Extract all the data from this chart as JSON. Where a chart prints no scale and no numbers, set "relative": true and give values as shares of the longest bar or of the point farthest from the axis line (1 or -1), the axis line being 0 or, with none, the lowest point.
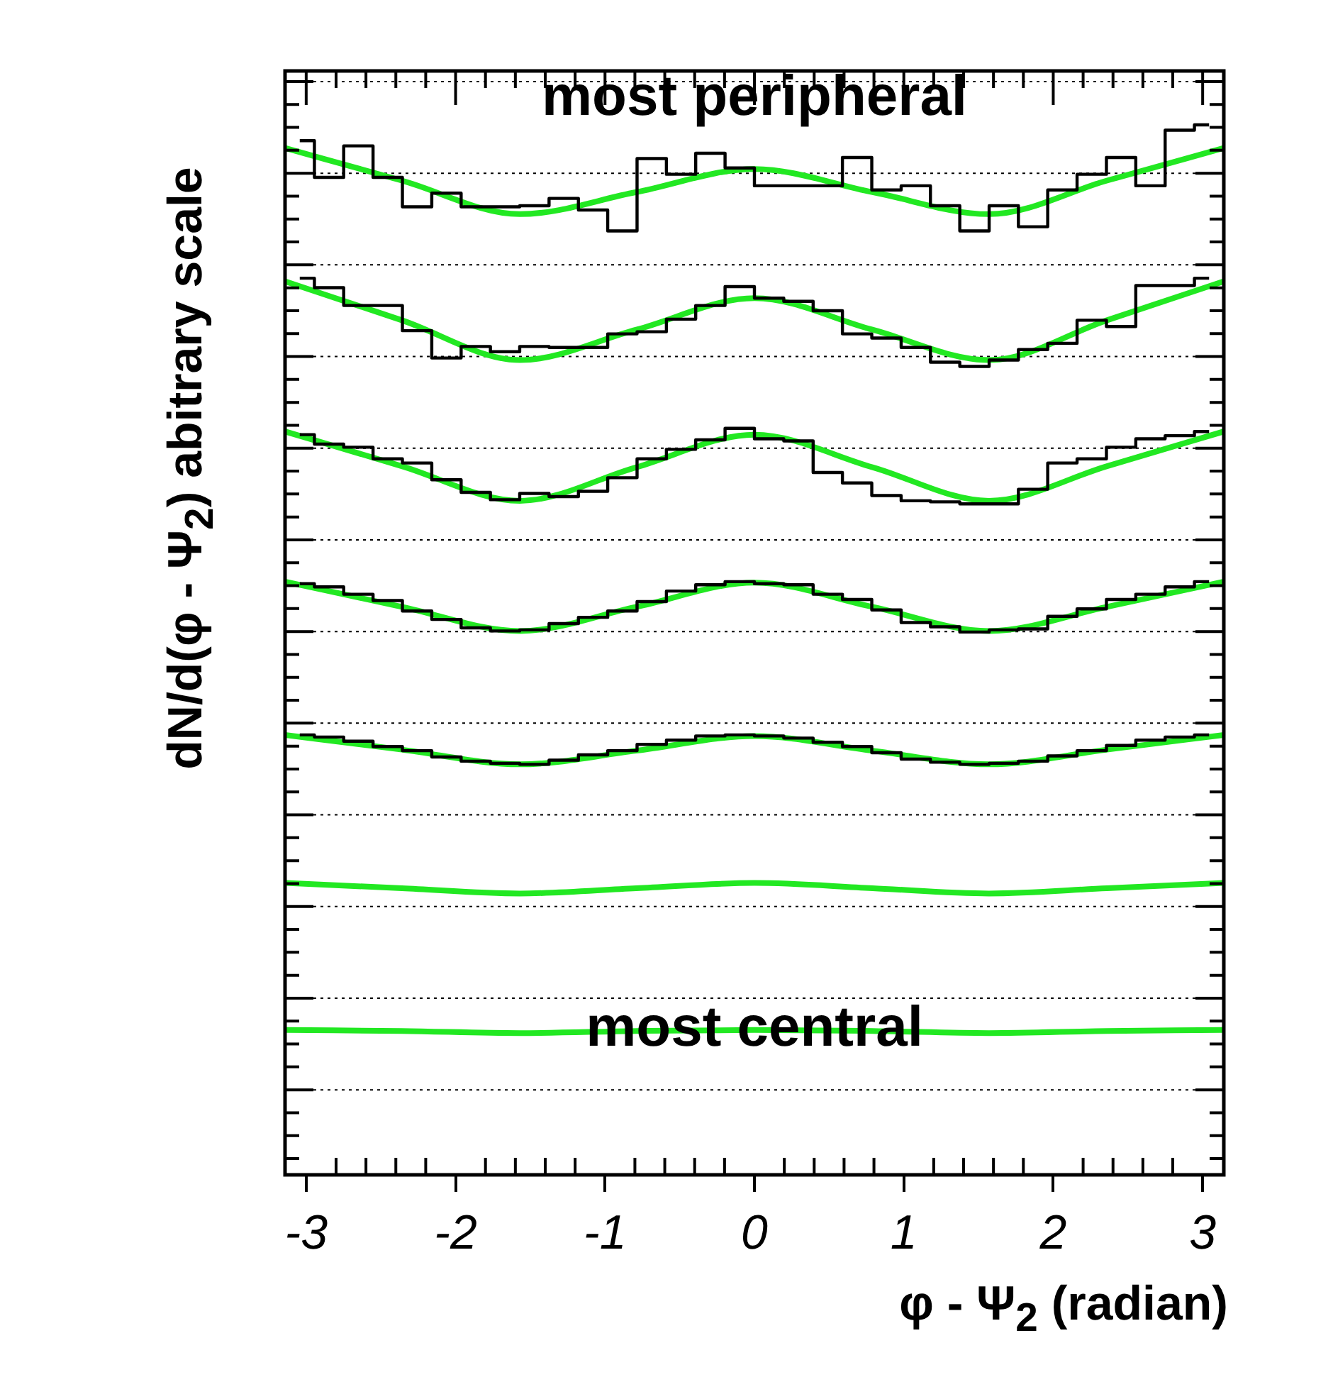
{
  "chart_data": {
    "type": "line",
    "relative": true,
    "xlabel": "φ - Ψ$_{2}$ (radian)",
    "ylabel": "dN/d(φ - Ψ$_{2}$) abitrary scale",
    "annotations": [
      "most peripheral",
      {
        "text": "most central",
        "x": 0,
        "y": 0.138
      }
    ],
    "xlim": [
      -3.1416,
      3.1416
    ],
    "xticks": [
      -3,
      -2,
      -1,
      0,
      1,
      2,
      3
    ],
    "grid": "y",
    "legend": false,
    "marker": "none",
    "line_style": "solid",
    "x": [
      -3.043,
      -2.847,
      -2.651,
      -2.454,
      -2.258,
      -2.061,
      -1.865,
      -1.669,
      -1.473,
      -1.276,
      -1.08,
      -0.884,
      -0.687,
      -0.491,
      -0.295,
      -0.098,
      0.098,
      0.295,
      0.491,
      0.687,
      0.884,
      1.08,
      1.276,
      1.473,
      1.669,
      1.865,
      2.061,
      2.258,
      2.454,
      2.651,
      2.847,
      3.043
    ],
    "series": [
      {
        "type": "step",
        "color": "#000000",
        "values": [
          0.985,
          0.95,
          0.98,
          0.95,
          0.922,
          0.935,
          0.922,
          0.922,
          0.923,
          0.93,
          0.919,
          0.899,
          0.968,
          0.953,
          0.973,
          0.959,
          0.942,
          0.942,
          0.942,
          0.969,
          0.938,
          0.942,
          0.923,
          0.899,
          0.923,
          0.903,
          0.938,
          0.953,
          0.969,
          0.942,
          0.995,
          1
        ]
      },
      {
        "type": "step",
        "color": "#000000",
        "values": [
          0.854,
          0.845,
          0.828,
          0.828,
          0.804,
          0.778,
          0.789,
          0.784,
          0.789,
          0.788,
          0.788,
          0.801,
          0.803,
          0.815,
          0.828,
          0.846,
          0.835,
          0.832,
          0.823,
          0.801,
          0.797,
          0.788,
          0.774,
          0.77,
          0.776,
          0.786,
          0.792,
          0.814,
          0.808,
          0.847,
          0.847,
          0.854
        ]
      },
      {
        "type": "step",
        "color": "#000000",
        "values": [
          0.705,
          0.696,
          0.693,
          0.682,
          0.678,
          0.662,
          0.65,
          0.643,
          0.649,
          0.646,
          0.651,
          0.664,
          0.682,
          0.691,
          0.7,
          0.711,
          0.701,
          0.699,
          0.669,
          0.659,
          0.647,
          0.642,
          0.641,
          0.639,
          0.639,
          0.653,
          0.678,
          0.682,
          0.693,
          0.701,
          0.704,
          0.708
        ]
      },
      {
        "type": "step",
        "color": "#000000",
        "values": [
          0.563,
          0.56,
          0.553,
          0.547,
          0.537,
          0.529,
          0.521,
          0.518,
          0.519,
          0.525,
          0.531,
          0.537,
          0.546,
          0.556,
          0.562,
          0.565,
          0.563,
          0.562,
          0.553,
          0.548,
          0.538,
          0.526,
          0.522,
          0.517,
          0.519,
          0.52,
          0.532,
          0.539,
          0.548,
          0.553,
          0.56,
          0.565
        ]
      },
      {
        "type": "step",
        "color": "#000000",
        "values": [
          0.419,
          0.417,
          0.413,
          0.408,
          0.404,
          0.398,
          0.394,
          0.392,
          0.391,
          0.395,
          0.4,
          0.404,
          0.41,
          0.414,
          0.418,
          0.419,
          0.418,
          0.416,
          0.412,
          0.408,
          0.402,
          0.396,
          0.393,
          0.391,
          0.392,
          0.394,
          0.399,
          0.404,
          0.409,
          0.414,
          0.417,
          0.419
        ]
      },
      {
        "type": "line",
        "color": "#22e822",
        "x": [
          -3.1416,
          -2.36,
          -1.57,
          -0.79,
          0,
          0.79,
          1.57,
          2.36,
          3.1416
        ],
        "values": [
          0.978,
          0.947,
          0.915,
          0.936,
          0.958,
          0.936,
          0.915,
          0.947,
          0.978
        ]
      },
      {
        "type": "line",
        "color": "#22e822",
        "x": [
          -3.1416,
          -2.36,
          -1.57,
          -0.79,
          0,
          0.79,
          1.57,
          2.36,
          3.1416
        ],
        "values": [
          0.851,
          0.814,
          0.776,
          0.805,
          0.835,
          0.805,
          0.776,
          0.814,
          0.851
        ]
      },
      {
        "type": "line",
        "color": "#22e822",
        "x": [
          -3.1416,
          -2.36,
          -1.57,
          -0.79,
          0,
          0.79,
          1.57,
          2.36,
          3.1416
        ],
        "values": [
          0.708,
          0.675,
          0.642,
          0.674,
          0.705,
          0.674,
          0.642,
          0.675,
          0.708
        ]
      },
      {
        "type": "line",
        "color": "#22e822",
        "x": [
          -3.1416,
          -2.36,
          -1.57,
          -0.79,
          0,
          0.79,
          1.57,
          2.36,
          3.1416
        ],
        "values": [
          0.565,
          0.541,
          0.518,
          0.541,
          0.564,
          0.541,
          0.518,
          0.541,
          0.565
        ]
      },
      {
        "type": "line",
        "color": "#22e822",
        "x": [
          -3.1416,
          -2.36,
          -1.57,
          -0.79,
          0,
          0.79,
          1.57,
          2.36,
          3.1416
        ],
        "values": [
          0.419,
          0.405,
          0.391,
          0.404,
          0.418,
          0.404,
          0.391,
          0.405,
          0.419
        ]
      },
      {
        "type": "line",
        "color": "#22e822",
        "x": [
          -3.1416,
          -2.36,
          -1.57,
          -0.79,
          0,
          0.79,
          1.57,
          2.36,
          3.1416
        ],
        "values": [
          0.278,
          0.273,
          0.268,
          0.273,
          0.278,
          0.273,
          0.268,
          0.273,
          0.278
        ]
      },
      {
        "type": "line",
        "color": "#22e822",
        "x": [
          -3.1416,
          -2.36,
          -1.57,
          -0.79,
          0,
          0.79,
          1.57,
          2.36,
          3.1416
        ],
        "values": [
          0.138,
          0.137,
          0.135,
          0.137,
          0.138,
          0.137,
          0.135,
          0.137,
          0.138
        ]
      }
    ]
  }
}
